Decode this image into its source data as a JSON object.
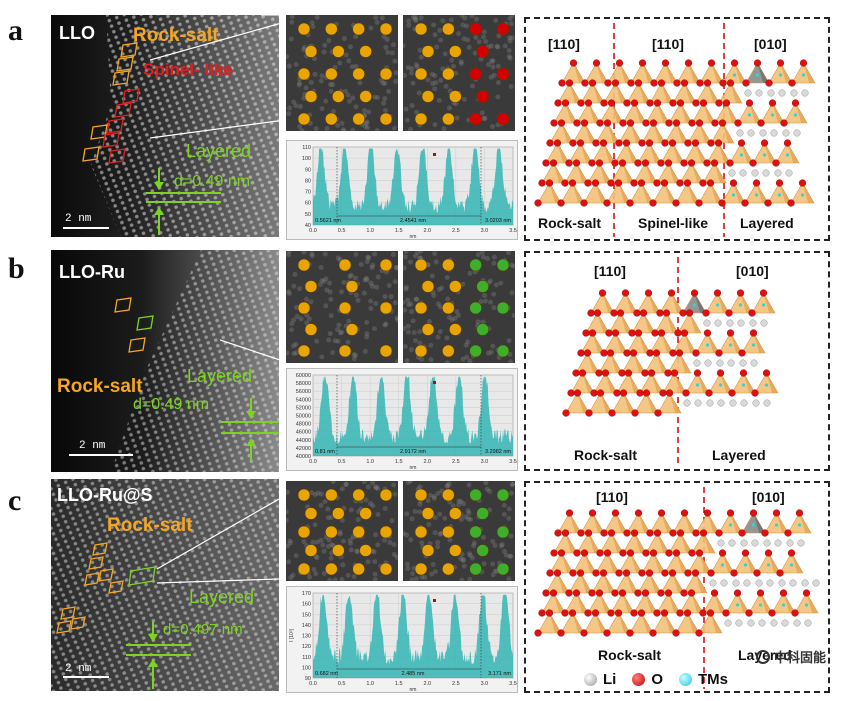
{
  "panels": [
    {
      "letter": "a",
      "tem_title": "LLO",
      "rock_salt": "Rock-salt",
      "spinel": "Spinel- like",
      "layered": "Layered",
      "d_spacing": "d=0.49 nm",
      "scale": "2 nm",
      "profile_axis": [
        "0.0",
        "0.5",
        "1.0",
        "1.5",
        "2.0",
        "2.5",
        "3.0",
        "3.5"
      ],
      "profile_y": [
        "110",
        "100",
        "90",
        "80",
        "70",
        "60",
        "50",
        "40"
      ],
      "profile_marks": [
        "0.5621 nm",
        "2.4541 nm",
        "3.0203 nm"
      ],
      "struct_dirs": [
        "[110]",
        "[110]",
        "[010]"
      ],
      "struct_labels": [
        "Rock-salt",
        "Spinel-like",
        "Layered"
      ]
    },
    {
      "letter": "b",
      "tem_title": "LLO-Ru",
      "rock_salt": "Rock-salt",
      "layered": "Layered",
      "d_spacing": "d=0.49 nm",
      "scale": "2 nm",
      "profile_axis": [
        "0.0",
        "0.5",
        "1.0",
        "1.5",
        "2.0",
        "2.5",
        "3.0",
        "3.5"
      ],
      "profile_y": [
        "60000",
        "58000",
        "56000",
        "54000",
        "52000",
        "50000",
        "48000",
        "46000",
        "44000",
        "42000",
        "40000"
      ],
      "profile_marks": [
        "0.81 nm",
        "2.9172 nm",
        "3.2982 nm"
      ],
      "struct_dirs": [
        "[110]",
        "[010]"
      ],
      "struct_labels": [
        "Rock-salt",
        "Layered"
      ]
    },
    {
      "letter": "c",
      "tem_title": "LLO-Ru@S",
      "rock_salt": "Rock-salt",
      "layered": "Layered",
      "d_spacing": "d=0.497 nm",
      "scale": "2 nm",
      "profile_axis": [
        "0.0",
        "0.5",
        "1.0",
        "1.5",
        "2.0",
        "2.5",
        "3.0",
        "3.5"
      ],
      "profile_y": [
        "170",
        "160",
        "150",
        "140",
        "130",
        "120",
        "110",
        "100",
        "90"
      ],
      "profile_y_label": "I [10³]",
      "profile_marks": [
        "0.682 nm",
        "2.485 nm",
        "3.171 nm"
      ],
      "struct_dirs": [
        "[110]",
        "[010]"
      ],
      "struct_labels": [
        "Rock-salt",
        "Layered"
      ]
    }
  ],
  "legend": {
    "li": "Li",
    "o": "O",
    "tm": "TMs"
  },
  "profile_x_unit": "nm",
  "watermark": "中科固能",
  "colors": {
    "orange": "#f5a623",
    "red": "#e02020",
    "green": "#7ed321",
    "cyan": "#3ad1c8",
    "teal": "#35b5b5"
  }
}
